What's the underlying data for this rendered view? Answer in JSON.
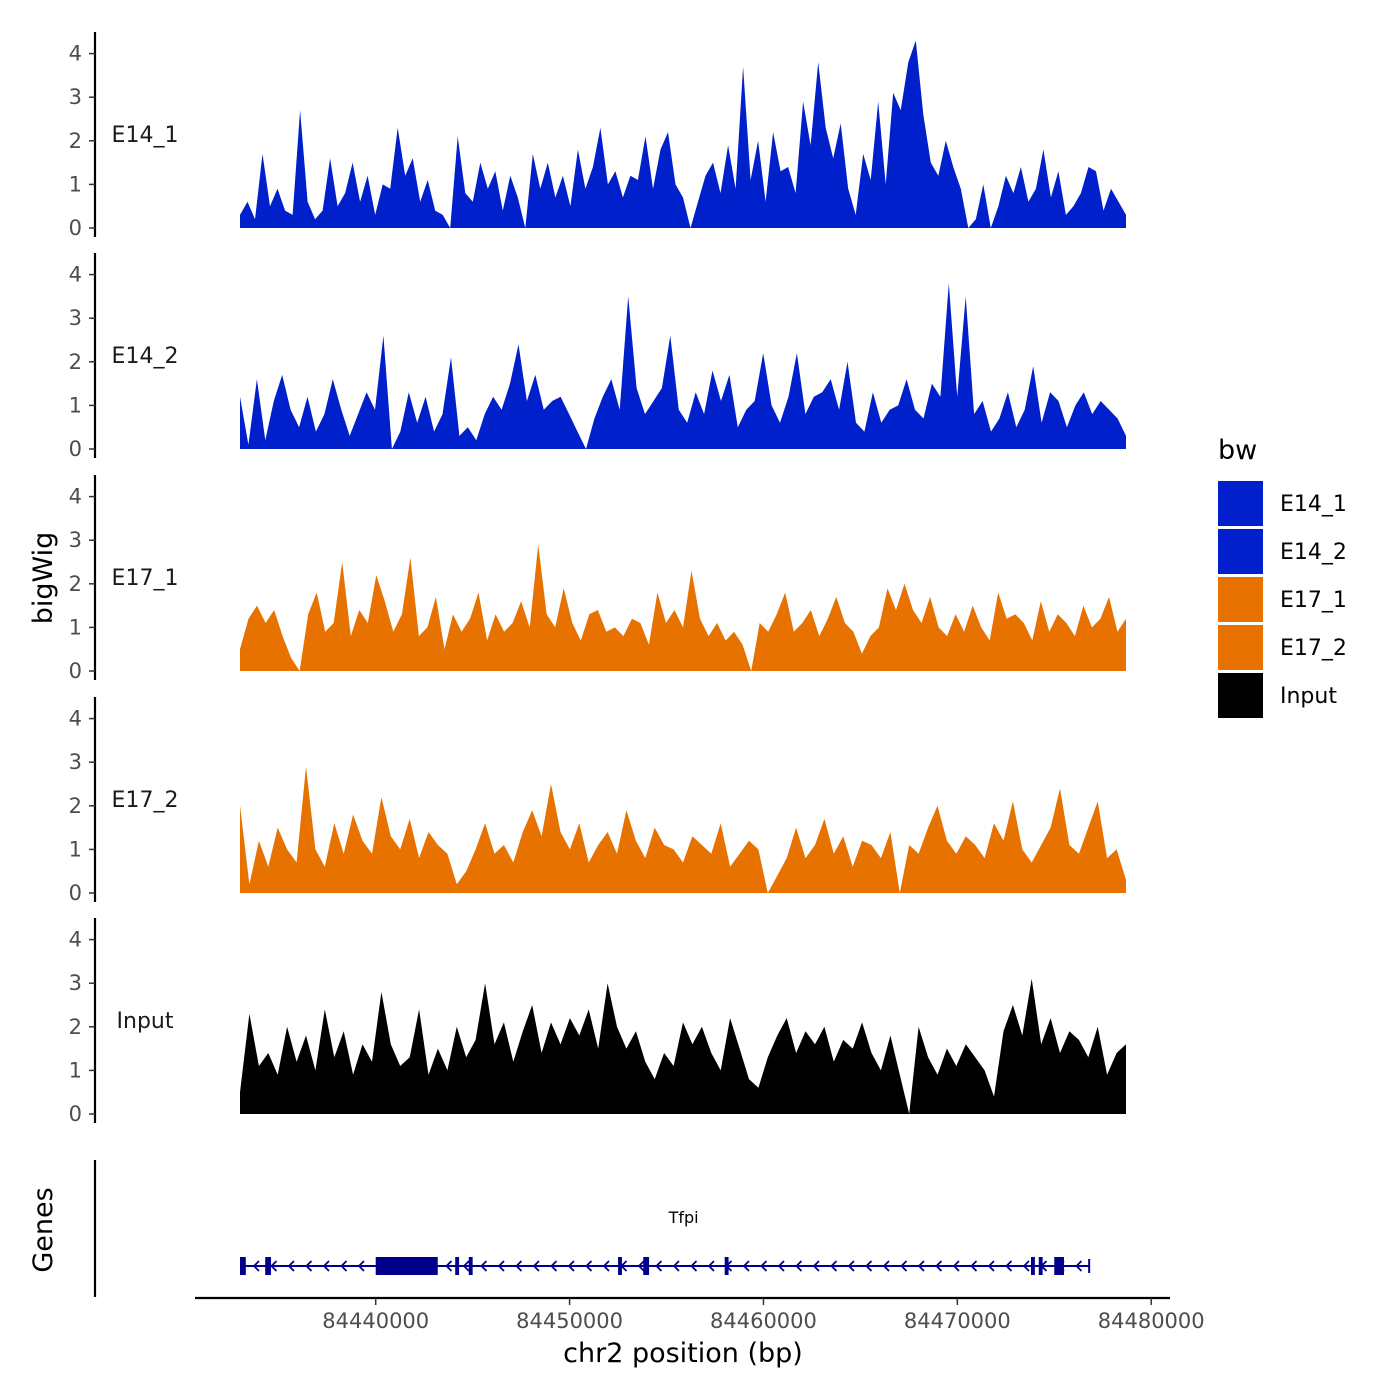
{
  "chart_data": {
    "type": "area",
    "title": "",
    "ylabel": "bigWig",
    "xlabel": "chr2 position (bp)",
    "region": {
      "chrom": "chr2",
      "start": 84433000,
      "end": 84478700
    },
    "ylim": [
      0,
      4.4
    ],
    "yticks": [
      0,
      1,
      2,
      3,
      4
    ],
    "xlim": [
      84430000,
      84481000
    ],
    "xticks": [
      84440000,
      84450000,
      84460000,
      84470000,
      84480000
    ],
    "xtick_labels": [
      "84440000",
      "84450000",
      "84460000",
      "84470000",
      "84480000"
    ],
    "legend": {
      "title": "bw",
      "position": "right",
      "entries": [
        {
          "name": "E14_1",
          "color": "#0020CC"
        },
        {
          "name": "E14_2",
          "color": "#0020CC"
        },
        {
          "name": "E17_1",
          "color": "#E87200"
        },
        {
          "name": "E17_2",
          "color": "#E87200"
        },
        {
          "name": "Input",
          "color": "#000000"
        }
      ]
    },
    "series": [
      {
        "name": "E14_1",
        "color": "#0020CC",
        "x_start": 84433000,
        "x_end": 84478700,
        "values": [
          0.3,
          0.6,
          0.2,
          1.7,
          0.5,
          0.9,
          0.4,
          0.3,
          2.7,
          0.6,
          0.2,
          0.4,
          1.6,
          0.5,
          0.8,
          1.5,
          0.6,
          1.2,
          0.3,
          1.0,
          0.9,
          2.3,
          1.2,
          1.6,
          0.6,
          1.1,
          0.4,
          0.3,
          0,
          2.1,
          0.8,
          0.6,
          1.5,
          0.9,
          1.3,
          0.4,
          1.2,
          0.7,
          0,
          1.7,
          0.9,
          1.5,
          0.7,
          1.2,
          0.5,
          1.8,
          0.9,
          1.4,
          2.3,
          1.0,
          1.3,
          0.7,
          1.2,
          1.1,
          2.1,
          0.9,
          1.8,
          2.2,
          1.0,
          0.7,
          0,
          0.6,
          1.2,
          1.5,
          0.8,
          1.9,
          0.9,
          3.7,
          1.1,
          2.0,
          0.6,
          2.2,
          1.3,
          1.4,
          0.8,
          2.9,
          1.9,
          3.8,
          2.3,
          1.6,
          2.4,
          0.9,
          0.3,
          1.7,
          1.1,
          2.9,
          1.0,
          3.1,
          2.7,
          3.8,
          4.3,
          2.6,
          1.5,
          1.2,
          2.0,
          1.4,
          0.9,
          0,
          0.2,
          1.0,
          0,
          0.5,
          1.2,
          0.8,
          1.4,
          0.6,
          0.9,
          1.8,
          0.7,
          1.3,
          0.3,
          0.5,
          0.8,
          1.4,
          1.3,
          0.4,
          0.9,
          0.6,
          0.3
        ]
      },
      {
        "name": "E14_2",
        "color": "#0020CC",
        "x_start": 84433000,
        "x_end": 84478700,
        "values": [
          1.2,
          0.1,
          1.6,
          0.2,
          1.1,
          1.7,
          0.9,
          0.5,
          1.2,
          0.4,
          0.8,
          1.6,
          0.9,
          0.3,
          0.8,
          1.3,
          0.9,
          2.6,
          0,
          0.4,
          1.3,
          0.6,
          1.2,
          0.4,
          0.8,
          2.1,
          0.3,
          0.5,
          0.2,
          0.8,
          1.2,
          0.9,
          1.5,
          2.4,
          1.1,
          1.7,
          0.9,
          1.1,
          1.2,
          0.8,
          0.4,
          0,
          0.7,
          1.2,
          1.6,
          0.9,
          3.5,
          1.4,
          0.8,
          1.1,
          1.4,
          2.6,
          0.9,
          0.6,
          1.3,
          0.8,
          1.8,
          1.1,
          1.7,
          0.5,
          0.9,
          1.1,
          2.2,
          1.0,
          0.6,
          1.2,
          2.2,
          0.8,
          1.2,
          1.3,
          1.6,
          0.9,
          2.0,
          0.6,
          0.4,
          1.3,
          0.6,
          0.9,
          1.0,
          1.6,
          0.9,
          0.7,
          1.5,
          1.2,
          3.8,
          1.2,
          3.5,
          0.8,
          1.1,
          0.4,
          0.7,
          1.3,
          0.5,
          0.9,
          1.9,
          0.6,
          1.3,
          1.1,
          0.5,
          1.0,
          1.3,
          0.8,
          1.1,
          0.9,
          0.7,
          0.3
        ]
      },
      {
        "name": "E17_1",
        "color": "#E87200",
        "x_start": 84433000,
        "x_end": 84478700,
        "values": [
          0.5,
          1.2,
          1.5,
          1.1,
          1.4,
          0.8,
          0.3,
          0,
          1.3,
          1.8,
          0.9,
          1.1,
          2.5,
          0.8,
          1.4,
          1.1,
          2.2,
          1.6,
          0.9,
          1.3,
          2.6,
          0.8,
          1.0,
          1.7,
          0.5,
          1.3,
          0.9,
          1.2,
          1.8,
          0.7,
          1.3,
          0.9,
          1.1,
          1.6,
          1.0,
          2.9,
          1.3,
          1.0,
          1.9,
          1.1,
          0.7,
          1.3,
          1.4,
          0.9,
          1.0,
          0.8,
          1.2,
          1.1,
          0.6,
          1.8,
          1.1,
          1.4,
          1.0,
          2.3,
          1.2,
          0.8,
          1.1,
          0.7,
          0.9,
          0.6,
          0,
          1.1,
          0.9,
          1.3,
          1.8,
          0.9,
          1.1,
          1.4,
          0.8,
          1.2,
          1.7,
          1.1,
          0.9,
          0.4,
          0.8,
          1.0,
          1.9,
          1.4,
          2.0,
          1.4,
          1.1,
          1.7,
          1.0,
          0.8,
          1.3,
          0.9,
          1.5,
          1.0,
          0.7,
          1.8,
          1.2,
          1.3,
          1.1,
          0.7,
          1.6,
          0.9,
          1.3,
          1.1,
          0.8,
          1.5,
          1.0,
          1.2,
          1.7,
          0.9,
          1.2
        ]
      },
      {
        "name": "E17_2",
        "color": "#E87200",
        "x_start": 84433000,
        "x_end": 84478700,
        "values": [
          2.0,
          0.2,
          1.2,
          0.6,
          1.5,
          1.0,
          0.7,
          2.9,
          1.0,
          0.6,
          1.6,
          0.9,
          1.8,
          1.2,
          0.9,
          2.2,
          1.3,
          1.0,
          1.7,
          0.8,
          1.4,
          1.1,
          0.9,
          0.2,
          0.5,
          1.0,
          1.6,
          0.9,
          1.1,
          0.7,
          1.4,
          1.9,
          1.3,
          2.5,
          1.4,
          1.0,
          1.6,
          0.7,
          1.1,
          1.4,
          0.9,
          1.9,
          1.2,
          0.8,
          1.5,
          1.1,
          1.0,
          0.7,
          1.3,
          1.1,
          0.9,
          1.6,
          0.6,
          0.9,
          1.2,
          1.0,
          0,
          0.4,
          0.8,
          1.5,
          0.8,
          1.1,
          1.7,
          0.9,
          1.3,
          0.6,
          1.2,
          1.1,
          0.8,
          1.4,
          0,
          1.1,
          0.9,
          1.5,
          2.0,
          1.2,
          0.9,
          1.3,
          1.1,
          0.8,
          1.6,
          1.2,
          2.1,
          1.0,
          0.7,
          1.1,
          1.5,
          2.4,
          1.1,
          0.9,
          1.5,
          2.1,
          0.8,
          1.0,
          0.3
        ]
      },
      {
        "name": "Input",
        "color": "#000000",
        "x_start": 84433000,
        "x_end": 84478700,
        "values": [
          0.5,
          2.3,
          1.1,
          1.4,
          0.9,
          2.0,
          1.2,
          1.8,
          1.0,
          2.4,
          1.3,
          1.9,
          0.9,
          1.6,
          1.2,
          2.8,
          1.6,
          1.1,
          1.3,
          2.4,
          0.9,
          1.5,
          1.0,
          2.0,
          1.3,
          1.7,
          3.0,
          1.6,
          2.1,
          1.2,
          1.9,
          2.5,
          1.4,
          2.1,
          1.6,
          2.2,
          1.8,
          2.4,
          1.5,
          3.0,
          2.0,
          1.5,
          1.9,
          1.2,
          0.8,
          1.4,
          1.1,
          2.1,
          1.6,
          2.0,
          1.4,
          1.0,
          2.2,
          1.5,
          0.8,
          0.6,
          1.3,
          1.8,
          2.2,
          1.4,
          1.9,
          1.6,
          2.0,
          1.2,
          1.7,
          1.5,
          2.1,
          1.4,
          1.0,
          1.8,
          0.9,
          0,
          2.0,
          1.3,
          0.9,
          1.5,
          1.1,
          1.6,
          1.3,
          1.0,
          0.4,
          1.9,
          2.5,
          1.8,
          3.1,
          1.6,
          2.2,
          1.4,
          1.9,
          1.7,
          1.3,
          2.0,
          0.9,
          1.4,
          1.6
        ]
      }
    ],
    "genes": [
      {
        "name": "Tfpi",
        "strand": "-",
        "start": 84433000,
        "end": 84476800,
        "exons": [
          [
            84433000,
            84433300
          ],
          [
            84434300,
            84434600
          ],
          [
            84440000,
            84443200
          ],
          [
            84444100,
            84444300
          ],
          [
            84444800,
            84445000
          ],
          [
            84452500,
            84452700
          ],
          [
            84453800,
            84454100
          ],
          [
            84458000,
            84458200
          ],
          [
            84473800,
            84474000
          ],
          [
            84474200,
            84474400
          ],
          [
            84475000,
            84475500
          ]
        ]
      }
    ]
  }
}
